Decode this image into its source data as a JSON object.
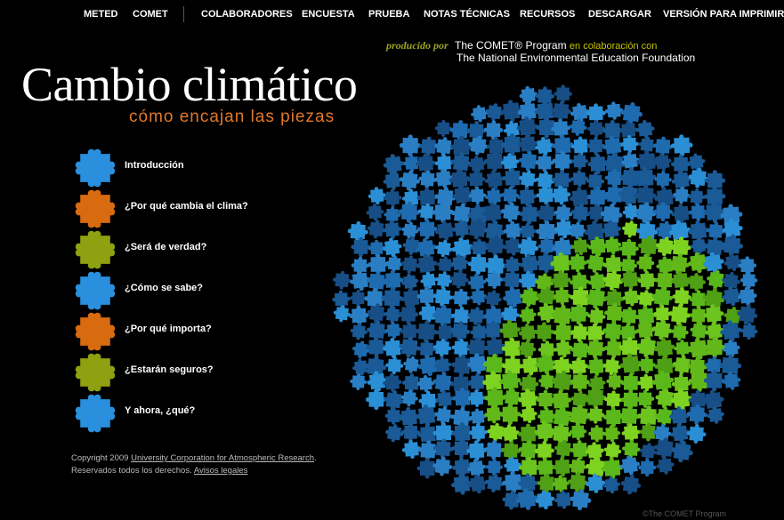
{
  "nav": {
    "items": [
      {
        "label": "METED",
        "name": "nav-meted"
      },
      {
        "label": "COMET",
        "name": "nav-comet"
      },
      {
        "label": "COLABORADORES",
        "name": "nav-colaboradores"
      },
      {
        "label": "ENCUESTA",
        "name": "nav-encuesta"
      },
      {
        "label": "PRUEBA",
        "name": "nav-prueba"
      },
      {
        "label": "NOTAS TÉCNICAS",
        "name": "nav-notas-tecnicas"
      },
      {
        "label": "RECURSOS",
        "name": "nav-recursos"
      },
      {
        "label": "DESCARGAR",
        "name": "nav-descargar"
      },
      {
        "label": "VERSIÓN PARA IMPRIMIR",
        "name": "nav-version-imprimir"
      }
    ]
  },
  "producer": {
    "prefix": "producido por",
    "program": "The COMET® Program",
    "collab": "en colaboración con",
    "partner": "The National Environmental Education Foundation"
  },
  "title": "Cambio climático",
  "subtitle": "cómo encajan las piezas",
  "colors": {
    "blue": "#2a8fdc",
    "orange": "#d86a10",
    "olive": "#8fa010",
    "subtitle": "#e0782a",
    "globe_blue": "#1a5a96",
    "globe_green": "#5ab81a"
  },
  "menu": [
    {
      "label": "Introducción",
      "color": "#2a8fdc",
      "icon": "puzzle-piece-blue-icon"
    },
    {
      "label": "¿Por qué cambia el clima?",
      "color": "#d86a10",
      "icon": "puzzle-piece-orange-icon"
    },
    {
      "label": "¿Será de verdad?",
      "color": "#8fa010",
      "icon": "puzzle-piece-olive-icon"
    },
    {
      "label": "¿Cómo se sabe?",
      "color": "#2a8fdc",
      "icon": "puzzle-piece-blue-icon"
    },
    {
      "label": "¿Por qué importa?",
      "color": "#d86a10",
      "icon": "puzzle-piece-orange-icon"
    },
    {
      "label": "¿Estarán seguros?",
      "color": "#8fa010",
      "icon": "puzzle-piece-olive-icon"
    },
    {
      "label": "Y ahora, ¿qué?",
      "color": "#2a8fdc",
      "icon": "puzzle-piece-blue-icon"
    }
  ],
  "footer": {
    "copyright_prefix": "Copyright 2009 ",
    "ucar_link": "University Corporation for Atmospheric Research",
    "period": ".",
    "rights": "Reservados todos los derechos. ",
    "legal_link": "Avisos legales",
    "credit": "©The COMET Program"
  }
}
